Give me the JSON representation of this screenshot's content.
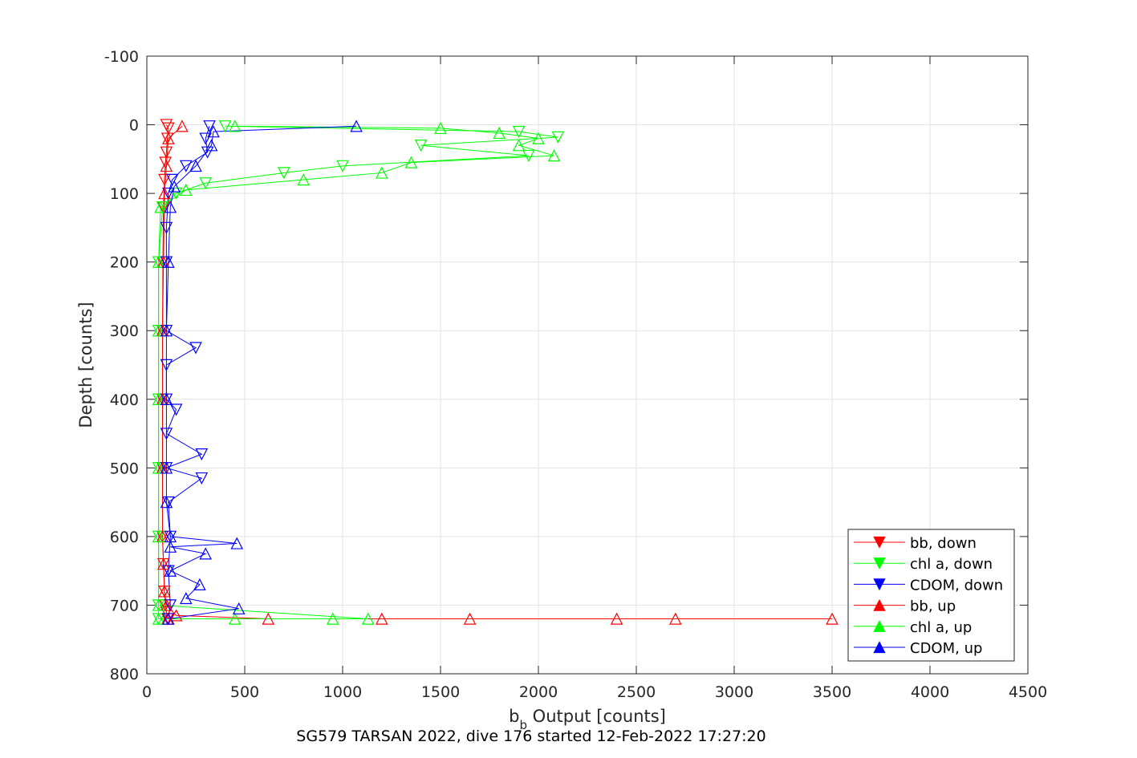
{
  "chart_data": {
    "type": "line",
    "title": "SG579 TARSAN 2022, dive 176 started 12-Feb-2022 17:27:20",
    "xlabel_main": "b",
    "xlabel_sub": "b",
    "xlabel_rest": " Output [counts]",
    "ylabel": "Depth [counts]",
    "xlim": [
      0,
      4500
    ],
    "ylim": [
      -100,
      800
    ],
    "y_reversed": true,
    "grid": true,
    "legend_position": "bottom-right",
    "xticks": [
      "0",
      "500",
      "1000",
      "1500",
      "2000",
      "2500",
      "3000",
      "3500",
      "4000",
      "4500"
    ],
    "yticks": [
      "-100",
      "0",
      "100",
      "200",
      "300",
      "400",
      "500",
      "600",
      "700",
      "800"
    ],
    "series": [
      {
        "name": "bb, down",
        "color": "#ff0000",
        "marker": "triangle-down",
        "points": [
          [
            100,
            0
          ],
          [
            110,
            5
          ],
          [
            105,
            20
          ],
          [
            100,
            40
          ],
          [
            95,
            55
          ],
          [
            90,
            80
          ],
          [
            85,
            120
          ],
          [
            82,
            200
          ],
          [
            80,
            300
          ],
          [
            80,
            400
          ],
          [
            80,
            500
          ],
          [
            80,
            600
          ],
          [
            85,
            640
          ],
          [
            90,
            680
          ],
          [
            95,
            700
          ],
          [
            100,
            710
          ],
          [
            105,
            720
          ]
        ]
      },
      {
        "name": "chl a, down",
        "color": "#00ff00",
        "marker": "triangle-down",
        "points": [
          [
            400,
            2
          ],
          [
            1900,
            10
          ],
          [
            2100,
            18
          ],
          [
            1400,
            30
          ],
          [
            1950,
            45
          ],
          [
            1000,
            60
          ],
          [
            700,
            70
          ],
          [
            300,
            85
          ],
          [
            150,
            100
          ],
          [
            80,
            120
          ],
          [
            60,
            200
          ],
          [
            60,
            300
          ],
          [
            60,
            400
          ],
          [
            60,
            500
          ],
          [
            60,
            600
          ],
          [
            60,
            700
          ],
          [
            60,
            720
          ]
        ]
      },
      {
        "name": "CDOM, down",
        "color": "#0000ff",
        "marker": "triangle-down",
        "points": [
          [
            320,
            2
          ],
          [
            300,
            20
          ],
          [
            310,
            40
          ],
          [
            200,
            60
          ],
          [
            130,
            80
          ],
          [
            110,
            100
          ],
          [
            100,
            150
          ],
          [
            100,
            200
          ],
          [
            100,
            300
          ],
          [
            250,
            325
          ],
          [
            100,
            350
          ],
          [
            100,
            400
          ],
          [
            150,
            415
          ],
          [
            100,
            450
          ],
          [
            280,
            480
          ],
          [
            100,
            500
          ],
          [
            280,
            515
          ],
          [
            110,
            550
          ],
          [
            120,
            600
          ],
          [
            110,
            650
          ],
          [
            120,
            700
          ],
          [
            110,
            720
          ]
        ]
      },
      {
        "name": "bb, up",
        "color": "#ff0000",
        "marker": "triangle-up",
        "points": [
          [
            105,
            720
          ],
          [
            3500,
            720
          ],
          [
            2700,
            720
          ],
          [
            2400,
            720
          ],
          [
            1650,
            720
          ],
          [
            1200,
            720
          ],
          [
            620,
            720
          ],
          [
            150,
            715
          ],
          [
            100,
            700
          ],
          [
            90,
            680
          ],
          [
            85,
            640
          ],
          [
            80,
            600
          ],
          [
            80,
            500
          ],
          [
            80,
            400
          ],
          [
            80,
            300
          ],
          [
            85,
            200
          ],
          [
            90,
            100
          ],
          [
            100,
            60
          ],
          [
            110,
            20
          ],
          [
            180,
            2
          ]
        ]
      },
      {
        "name": "chl a, up",
        "color": "#00ff00",
        "marker": "triangle-up",
        "points": [
          [
            60,
            720
          ],
          [
            450,
            720
          ],
          [
            950,
            720
          ],
          [
            1130,
            720
          ],
          [
            60,
            700
          ],
          [
            60,
            600
          ],
          [
            60,
            500
          ],
          [
            60,
            400
          ],
          [
            60,
            300
          ],
          [
            60,
            200
          ],
          [
            70,
            120
          ],
          [
            200,
            95
          ],
          [
            800,
            80
          ],
          [
            1200,
            70
          ],
          [
            1350,
            55
          ],
          [
            2080,
            45
          ],
          [
            1900,
            30
          ],
          [
            2000,
            20
          ],
          [
            1800,
            12
          ],
          [
            1500,
            5
          ],
          [
            450,
            2
          ]
        ]
      },
      {
        "name": "CDOM, up",
        "color": "#0000ff",
        "marker": "triangle-up",
        "points": [
          [
            110,
            720
          ],
          [
            470,
            705
          ],
          [
            200,
            690
          ],
          [
            270,
            670
          ],
          [
            120,
            650
          ],
          [
            300,
            625
          ],
          [
            120,
            615
          ],
          [
            460,
            610
          ],
          [
            120,
            600
          ],
          [
            100,
            550
          ],
          [
            100,
            500
          ],
          [
            100,
            400
          ],
          [
            100,
            300
          ],
          [
            110,
            200
          ],
          [
            120,
            120
          ],
          [
            140,
            90
          ],
          [
            250,
            60
          ],
          [
            330,
            30
          ],
          [
            340,
            10
          ],
          [
            1070,
            2
          ]
        ]
      }
    ]
  }
}
